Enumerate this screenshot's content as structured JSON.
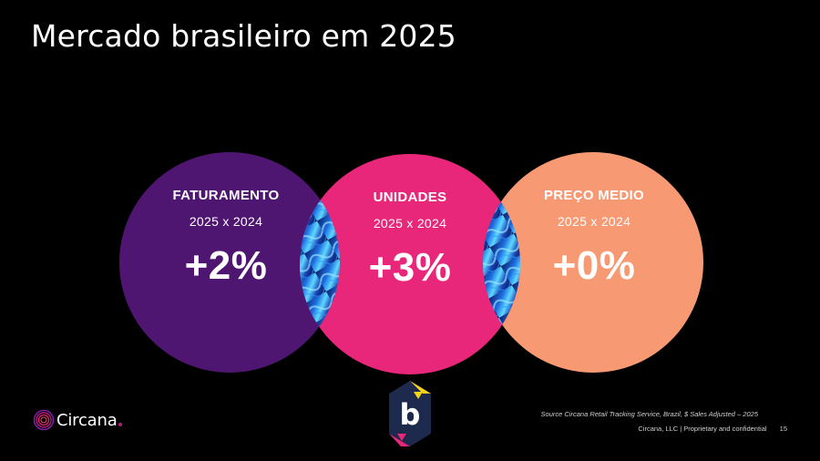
{
  "slide": {
    "title": "Mercado brasileiro em 2025"
  },
  "circles": [
    {
      "heading": "FATURAMENTO",
      "period": "2025 x 2024",
      "value": "+2%",
      "color": "#4e1670"
    },
    {
      "heading": "UNIDADES",
      "period": "2025 x 2024",
      "value": "+3%",
      "color": "#e8277a"
    },
    {
      "heading": "PREÇO MEDIO",
      "period": "2025 x 2024",
      "value": "+0%",
      "color": "#f79a74"
    }
  ],
  "brand": {
    "name": "Circana",
    "accent": "#b7197a"
  },
  "badge": {
    "letter": "b",
    "colors": {
      "bg": "#1d2a4d",
      "top": "#f7d21a",
      "bottom": "#e8277a"
    }
  },
  "footer": {
    "source": "Source Circana Retail Tracking Service, Brazil, $ Sales Adjusted – 2025",
    "company": "Circana, LLC  |  Proprietary and confidential",
    "page": "15"
  }
}
